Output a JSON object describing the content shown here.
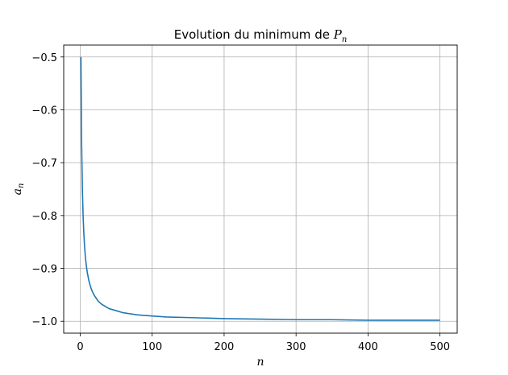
{
  "chart_data": {
    "type": "line",
    "title": "Evolution du minimum de ",
    "title_var": "P",
    "title_sub": "n",
    "xlabel": "n",
    "ylabel": "a",
    "ylabel_sub": "n",
    "xlim": [
      -22.95,
      523.95
    ],
    "ylim": [
      -1.0225,
      -0.4775
    ],
    "x_ticks": [
      0,
      100,
      200,
      300,
      400,
      500
    ],
    "y_ticks": [
      -0.5,
      -0.6,
      -0.7,
      -0.8,
      -0.9,
      -1.0
    ],
    "x_tick_labels": [
      "0",
      "100",
      "200",
      "300",
      "400",
      "500"
    ],
    "y_tick_labels": [
      "−0.5",
      "−0.6",
      "−0.7",
      "−0.8",
      "−0.9",
      "−1.0"
    ],
    "grid": true,
    "line_color": "#1f77b4",
    "series": [
      {
        "x": [
          1,
          2,
          3,
          4,
          5,
          6,
          7,
          8,
          9,
          10,
          12,
          14,
          16,
          18,
          20,
          25,
          30,
          35,
          40,
          50,
          60,
          70,
          80,
          100,
          120,
          150,
          200,
          250,
          300,
          350,
          400,
          450,
          500
        ],
        "y": [
          -0.5,
          -0.667,
          -0.75,
          -0.8,
          -0.833,
          -0.857,
          -0.875,
          -0.889,
          -0.9,
          -0.909,
          -0.923,
          -0.933,
          -0.941,
          -0.947,
          -0.952,
          -0.962,
          -0.968,
          -0.972,
          -0.976,
          -0.98,
          -0.984,
          -0.986,
          -0.988,
          -0.99,
          -0.992,
          -0.993,
          -0.995,
          -0.996,
          -0.997,
          -0.997,
          -0.998,
          -0.998,
          -0.998
        ]
      }
    ]
  }
}
